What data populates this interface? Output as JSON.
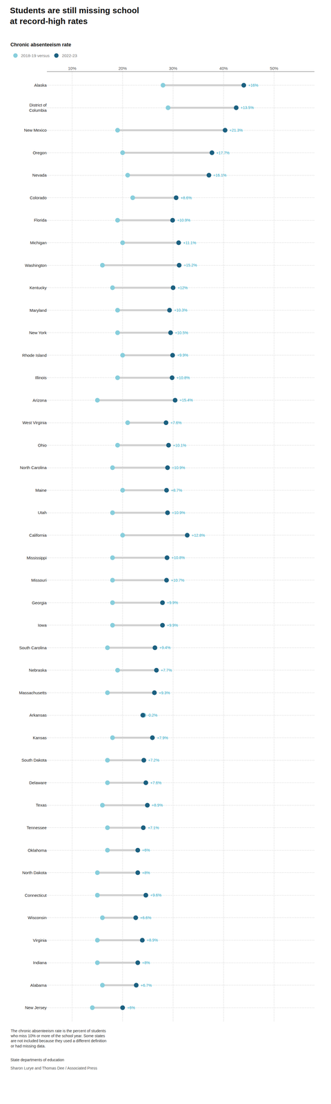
{
  "chart_data": {
    "type": "dumbbell",
    "title": "Students are still missing school\nat record-high rates",
    "subtitle": "Chronic absenteeism rate",
    "categories": [
      "Alaska",
      "District of\nColumbia",
      "New Mexico",
      "Oregon",
      "Nevada",
      "Colorado",
      "Florida",
      "Michigan",
      "Washington",
      "Kentucky",
      "Maryland",
      "New York",
      "Rhode Island",
      "Illinois",
      "Arizona",
      "West Virginia",
      "Ohio",
      "North Carolina",
      "Maine",
      "Utah",
      "California",
      "Mississippi",
      "Missouri",
      "Georgia",
      "Iowa",
      "South Carolina",
      "Nebraska",
      "Massachusetts",
      "Arkansas",
      "Kansas",
      "South Dakota",
      "Delaware",
      "Texas",
      "Tennessee",
      "Oklahoma",
      "North Dakota",
      "Connecticut",
      "Wisconsin",
      "Virginia",
      "Indiana",
      "Alabama",
      "New Jersey"
    ],
    "series": [
      {
        "name": "2018-19 versus",
        "color": "#87CEDC",
        "values": [
          28.0,
          29.0,
          19.0,
          20.0,
          21.0,
          22.0,
          19.0,
          20.0,
          16.0,
          18.0,
          19.0,
          19.0,
          20.0,
          19.0,
          15.0,
          21.0,
          19.0,
          18.0,
          20.0,
          18.0,
          20.0,
          18.0,
          18.0,
          18.0,
          18.0,
          17.0,
          19.0,
          17.0,
          24.2,
          18.0,
          17.0,
          17.0,
          16.0,
          17.0,
          17.0,
          15.0,
          15.0,
          16.0,
          15.0,
          15.0,
          16.0,
          14.0
        ]
      },
      {
        "name": "2022-23",
        "color": "#1B6080",
        "values": [
          44.0,
          42.5,
          40.3,
          37.7,
          37.1,
          30.6,
          29.9,
          31.1,
          31.2,
          30.0,
          29.3,
          29.5,
          29.9,
          29.8,
          30.4,
          28.6,
          29.1,
          28.9,
          28.7,
          28.9,
          32.8,
          28.8,
          28.7,
          27.9,
          27.9,
          26.4,
          26.7,
          26.3,
          24.0,
          25.9,
          24.2,
          24.6,
          24.9,
          24.1,
          23.0,
          23.0,
          24.6,
          22.6,
          23.9,
          23.0,
          22.7,
          20.0
        ]
      }
    ],
    "change_labels": [
      "+16%",
      "+13.5%",
      "+21.3%",
      "+17.7%",
      "+16.1%",
      "+8.6%",
      "+10.9%",
      "+11.1%",
      "+15.2%",
      "+12%",
      "+10.3%",
      "+10.5%",
      "+9.9%",
      "+10.8%",
      "+15.4%",
      "+7.6%",
      "+10.1%",
      "+10.9%",
      "+8.7%",
      "+10.9%",
      "+12.8%",
      "+10.8%",
      "+10.7%",
      "+9.9%",
      "+9.9%",
      "+9.4%",
      "+7.7%",
      "+9.3%",
      "-0.2%",
      "+7.9%",
      "+7.2%",
      "+7.6%",
      "+8.9%",
      "+7.1%",
      "+6%",
      "+8%",
      "+9.6%",
      "+6.6%",
      "+8.9%",
      "+8%",
      "+6.7%",
      "+6%"
    ],
    "xlim": [
      5,
      58
    ],
    "xticks": [
      {
        "value": 10,
        "label": "10%"
      },
      {
        "value": 20,
        "label": "20%"
      },
      {
        "value": 30,
        "label": "30%"
      },
      {
        "value": 40,
        "label": "40%"
      },
      {
        "value": 50,
        "label": "50%"
      }
    ],
    "grid": true,
    "legend": "top",
    "footnote": "The chronic absenteeism rate is the percent of students\nwho miss 10% or more of the school year. Some states\nare not included because they used a different definition\nor had missing data.",
    "source": "State departments of education",
    "credit": "Sharon Lurye and Thomas Dee / Associated Press"
  }
}
